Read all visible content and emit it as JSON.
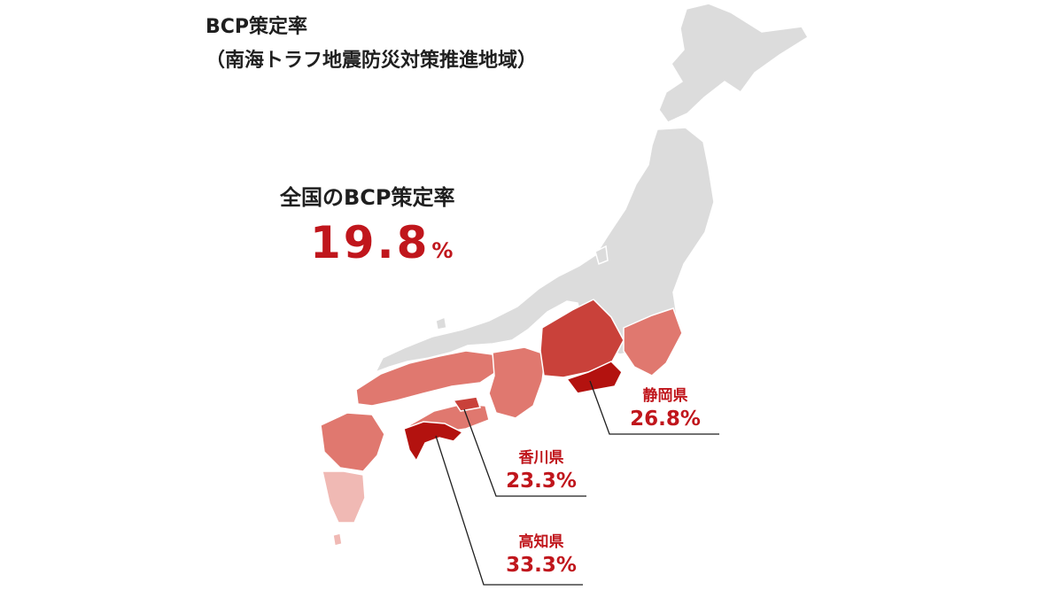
{
  "title": {
    "line1": "BCP策定率",
    "line2": "（南海トラフ地震防災対策推進地域）"
  },
  "national": {
    "label": "全国のBCP策定率",
    "value": "19.8",
    "unit": "%"
  },
  "callouts": [
    {
      "prefecture": "静岡県",
      "rate": "26.8%"
    },
    {
      "prefecture": "香川県",
      "rate": "23.3%"
    },
    {
      "prefecture": "高知県",
      "rate": "33.3%"
    }
  ],
  "colors": {
    "highlight_text": "#c0161c",
    "land_base": "#dcdcdc",
    "shade_light": "#f0b9b4",
    "shade_medium": "#e0786f",
    "shade_dark": "#c9413a",
    "shade_darkest": "#b3120f"
  }
}
